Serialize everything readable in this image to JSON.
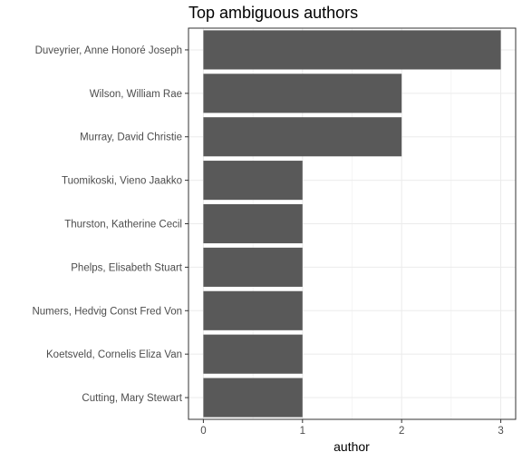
{
  "chart_data": {
    "type": "bar",
    "orientation": "horizontal",
    "title": "Top ambiguous authors",
    "xlabel": "author",
    "ylabel": "",
    "categories": [
      "Duveyrier, Anne Honoré Joseph",
      "Wilson, William Rae",
      "Murray, David Christie",
      "Tuomikoski, Vieno Jaakko",
      "Thurston, Katherine Cecil",
      "Phelps, Elisabeth Stuart",
      "Numers, Hedvig Const Fred Von",
      "Koetsveld, Cornelis Eliza Van",
      "Cutting, Mary Stewart"
    ],
    "values": [
      3,
      2,
      2,
      1,
      1,
      1,
      1,
      1,
      1
    ],
    "xticks": [
      "0",
      "1",
      "2",
      "3"
    ],
    "xlim": [
      -0.15,
      3.15
    ],
    "grid": true,
    "legend": "none",
    "bar_color": "#595959",
    "grid_color": "#ebebeb",
    "panel_border_color": "#333333"
  }
}
